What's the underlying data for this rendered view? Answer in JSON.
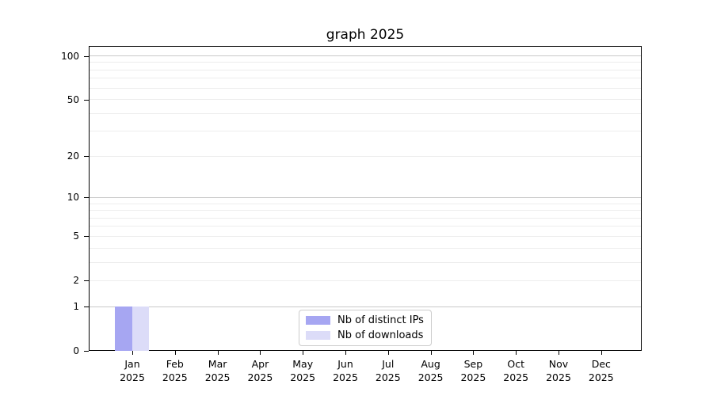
{
  "chart_data": {
    "type": "bar",
    "title": "graph 2025",
    "categories": [
      "Jan",
      "Feb",
      "Mar",
      "Apr",
      "May",
      "Jun",
      "Jul",
      "Aug",
      "Sep",
      "Oct",
      "Nov",
      "Dec"
    ],
    "year": "2025",
    "series": [
      {
        "name": "Nb of distinct IPs",
        "color": "#a6a6f2",
        "values": [
          1,
          0,
          0,
          0,
          0,
          0,
          0,
          0,
          0,
          0,
          0,
          0
        ]
      },
      {
        "name": "Nb of downloads",
        "color": "#dcdcf8",
        "values": [
          1,
          0,
          0,
          0,
          0,
          0,
          0,
          0,
          0,
          0,
          0,
          0
        ]
      }
    ],
    "xlabel": "",
    "ylabel": "",
    "scale": "log1p",
    "ylim": [
      0,
      117
    ],
    "y_ticks": [
      100,
      50,
      20,
      10,
      5,
      2,
      1,
      0
    ],
    "y_major_gridlines": [
      1,
      10,
      100
    ],
    "y_minor_gridlines": [
      2,
      3,
      4,
      5,
      6,
      7,
      8,
      9,
      20,
      30,
      40,
      50,
      60,
      70,
      80,
      90
    ],
    "grid": true,
    "legend_position": "bottom-center"
  }
}
